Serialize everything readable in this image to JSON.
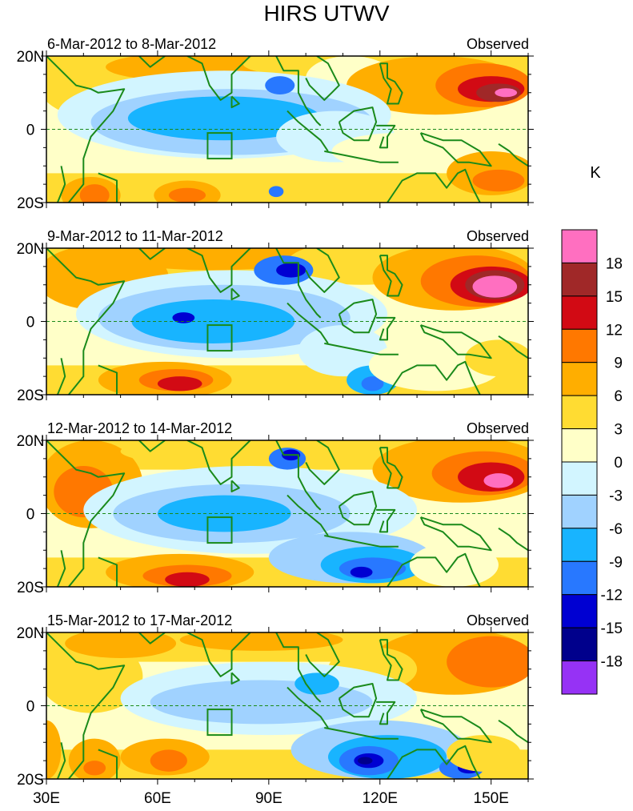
{
  "chart_data": {
    "type": "heatmap",
    "title": "HIRS UTWV",
    "units": "K",
    "x_ticks": [
      "30E",
      "60E",
      "90E",
      "120E",
      "150E"
    ],
    "xlim": [
      30,
      160
    ],
    "ylim": [
      -20,
      20
    ],
    "y_ticks": [
      "20N",
      "0",
      "20S"
    ],
    "colorbar": {
      "levels": [
        "18",
        "15",
        "12",
        "9",
        "6",
        "3",
        "0",
        "-3",
        "-6",
        "-9",
        "-12",
        "-15",
        "-18"
      ],
      "colors": [
        "#ff6fc0",
        "#a02828",
        "#d20a14",
        "#ff7800",
        "#ffae00",
        "#ffdc32",
        "#ffffc8",
        "#d2f5ff",
        "#a0d2ff",
        "#18b4ff",
        "#2878ff",
        "#0000d2",
        "#00008c",
        "#9632f5"
      ]
    },
    "panels": [
      {
        "date_label": "6-Mar-2012 to 8-Mar-2012",
        "tag": "Observed"
      },
      {
        "date_label": "9-Mar-2012 to 11-Mar-2012",
        "tag": "Observed"
      },
      {
        "date_label": "12-Mar-2012 to 14-Mar-2012",
        "tag": "Observed"
      },
      {
        "date_label": "15-Mar-2012 to 17-Mar-2012",
        "tag": "Observed"
      }
    ]
  }
}
